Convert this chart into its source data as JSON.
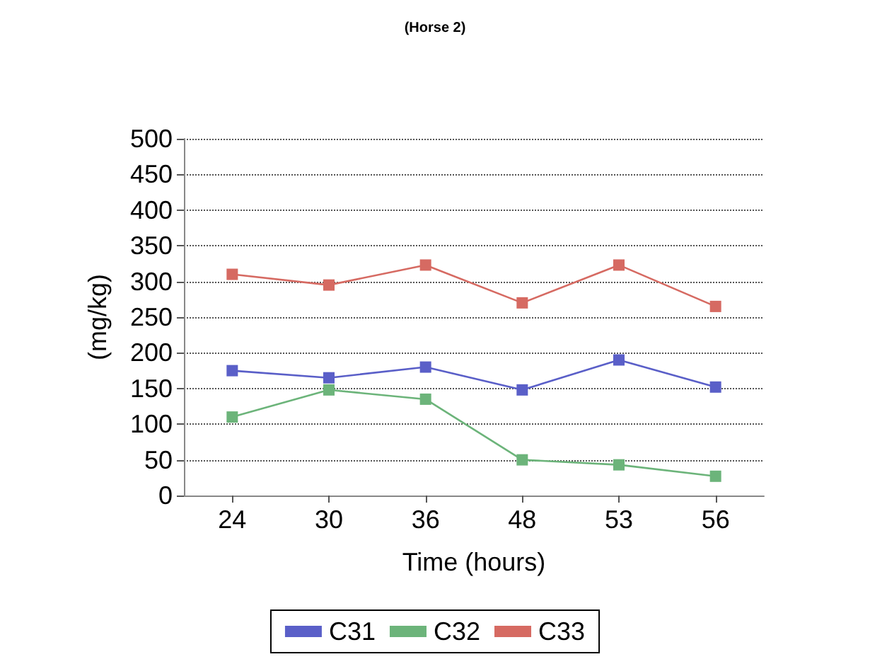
{
  "chart_data": {
    "type": "line",
    "title": "(Horse 2)",
    "xlabel": "Time (hours)",
    "ylabel": "(mg/kg)",
    "categories": [
      "24",
      "30",
      "36",
      "48",
      "53",
      "56"
    ],
    "series": [
      {
        "name": "C31",
        "color": "#5a5fc8",
        "values": [
          175,
          165,
          180,
          148,
          190,
          152
        ]
      },
      {
        "name": "C32",
        "color": "#6cb47a",
        "values": [
          110,
          148,
          135,
          50,
          43,
          27
        ]
      },
      {
        "name": "C33",
        "color": "#d66a62",
        "values": [
          310,
          295,
          323,
          270,
          323,
          265
        ]
      }
    ],
    "ylim": [
      0,
      500
    ],
    "yticks": [
      0,
      50,
      100,
      150,
      200,
      250,
      300,
      350,
      400,
      450,
      500
    ],
    "grid": "y",
    "legend": "bottom",
    "marker": "square",
    "line_style": "solid"
  }
}
